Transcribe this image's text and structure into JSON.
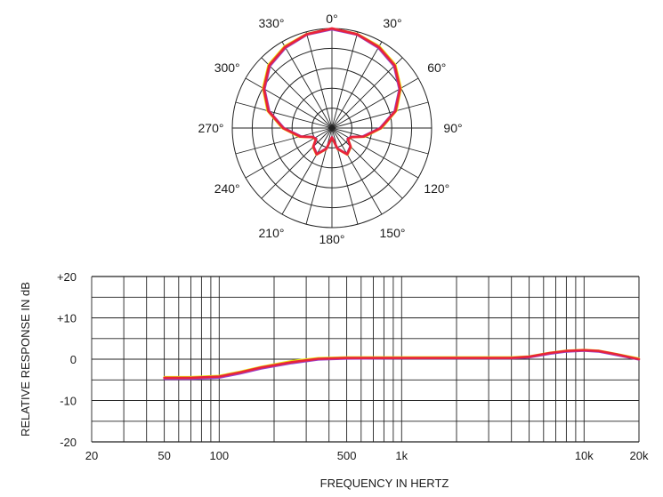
{
  "chart_data": [
    {
      "type": "polar",
      "angle_labels": [
        "0°",
        "30°",
        "60°",
        "90°",
        "120°",
        "150°",
        "180°",
        "210°",
        "240°",
        "270°",
        "300°",
        "330°"
      ],
      "rings": 5,
      "pattern": "supercardioid",
      "series": [
        {
          "color": "#e8e810",
          "values": [
            {
              "angle": 0,
              "r": 1.0
            },
            {
              "angle": 15,
              "r": 0.98
            },
            {
              "angle": 30,
              "r": 0.95
            },
            {
              "angle": 45,
              "r": 0.9
            },
            {
              "angle": 60,
              "r": 0.8
            },
            {
              "angle": 75,
              "r": 0.67
            },
            {
              "angle": 90,
              "r": 0.5
            },
            {
              "angle": 105,
              "r": 0.34
            },
            {
              "angle": 115,
              "r": 0.22
            },
            {
              "angle": 125,
              "r": 0.2
            },
            {
              "angle": 135,
              "r": 0.27
            },
            {
              "angle": 150,
              "r": 0.31
            },
            {
              "angle": 165,
              "r": 0.22
            },
            {
              "angle": 180,
              "r": 0.1
            },
            {
              "angle": 195,
              "r": 0.22
            },
            {
              "angle": 210,
              "r": 0.31
            },
            {
              "angle": 225,
              "r": 0.27
            },
            {
              "angle": 235,
              "r": 0.2
            },
            {
              "angle": 245,
              "r": 0.22
            },
            {
              "angle": 255,
              "r": 0.34
            },
            {
              "angle": 270,
              "r": 0.5
            },
            {
              "angle": 285,
              "r": 0.67
            },
            {
              "angle": 300,
              "r": 0.8
            },
            {
              "angle": 315,
              "r": 0.9
            },
            {
              "angle": 330,
              "r": 0.95
            },
            {
              "angle": 345,
              "r": 0.98
            }
          ]
        },
        {
          "color": "#9b3ec8",
          "values": [
            {
              "angle": 0,
              "r": 0.99
            },
            {
              "angle": 15,
              "r": 0.97
            },
            {
              "angle": 30,
              "r": 0.93
            },
            {
              "angle": 45,
              "r": 0.88
            },
            {
              "angle": 60,
              "r": 0.78
            },
            {
              "angle": 75,
              "r": 0.65
            },
            {
              "angle": 90,
              "r": 0.48
            },
            {
              "angle": 105,
              "r": 0.32
            },
            {
              "angle": 115,
              "r": 0.21
            },
            {
              "angle": 125,
              "r": 0.19
            },
            {
              "angle": 135,
              "r": 0.26
            },
            {
              "angle": 150,
              "r": 0.3
            },
            {
              "angle": 165,
              "r": 0.21
            },
            {
              "angle": 180,
              "r": 0.09
            },
            {
              "angle": 195,
              "r": 0.21
            },
            {
              "angle": 210,
              "r": 0.3
            },
            {
              "angle": 225,
              "r": 0.26
            },
            {
              "angle": 235,
              "r": 0.19
            },
            {
              "angle": 245,
              "r": 0.21
            },
            {
              "angle": 255,
              "r": 0.32
            },
            {
              "angle": 270,
              "r": 0.48
            },
            {
              "angle": 285,
              "r": 0.65
            },
            {
              "angle": 300,
              "r": 0.78
            },
            {
              "angle": 315,
              "r": 0.88
            },
            {
              "angle": 330,
              "r": 0.93
            },
            {
              "angle": 345,
              "r": 0.97
            }
          ]
        },
        {
          "color": "#e8243a",
          "values": [
            {
              "angle": 0,
              "r": 1.0
            },
            {
              "angle": 15,
              "r": 0.975
            },
            {
              "angle": 30,
              "r": 0.94
            },
            {
              "angle": 45,
              "r": 0.89
            },
            {
              "angle": 60,
              "r": 0.79
            },
            {
              "angle": 75,
              "r": 0.66
            },
            {
              "angle": 90,
              "r": 0.49
            },
            {
              "angle": 105,
              "r": 0.33
            },
            {
              "angle": 115,
              "r": 0.215
            },
            {
              "angle": 125,
              "r": 0.195
            },
            {
              "angle": 135,
              "r": 0.265
            },
            {
              "angle": 150,
              "r": 0.305
            },
            {
              "angle": 165,
              "r": 0.215
            },
            {
              "angle": 180,
              "r": 0.095
            },
            {
              "angle": 195,
              "r": 0.215
            },
            {
              "angle": 210,
              "r": 0.305
            },
            {
              "angle": 225,
              "r": 0.265
            },
            {
              "angle": 235,
              "r": 0.195
            },
            {
              "angle": 245,
              "r": 0.215
            },
            {
              "angle": 255,
              "r": 0.33
            },
            {
              "angle": 270,
              "r": 0.49
            },
            {
              "angle": 285,
              "r": 0.66
            },
            {
              "angle": 300,
              "r": 0.79
            },
            {
              "angle": 315,
              "r": 0.89
            },
            {
              "angle": 330,
              "r": 0.94
            },
            {
              "angle": 345,
              "r": 0.975
            }
          ]
        }
      ]
    },
    {
      "type": "line",
      "xscale": "log",
      "xlim": [
        20,
        20000
      ],
      "ylim": [
        -20,
        20
      ],
      "xlabel": "FREQUENCY IN HERTZ",
      "ylabel": "RELATIVE RESPONSE IN dB",
      "x_ticks": [
        {
          "value": 20,
          "label": "20"
        },
        {
          "value": 50,
          "label": "50"
        },
        {
          "value": 100,
          "label": "100"
        },
        {
          "value": 500,
          "label": "500"
        },
        {
          "value": 1000,
          "label": "1k"
        },
        {
          "value": 10000,
          "label": "10k"
        },
        {
          "value": 20000,
          "label": "20k"
        }
      ],
      "y_ticks": [
        {
          "value": 20,
          "label": "+20"
        },
        {
          "value": 10,
          "label": "+10"
        },
        {
          "value": 0,
          "label": "0"
        },
        {
          "value": -10,
          "label": "-10"
        },
        {
          "value": -20,
          "label": "-20"
        }
      ],
      "grid": true,
      "series": [
        {
          "color": "#e8e810",
          "x": [
            50,
            70,
            100,
            130,
            170,
            250,
            350,
            500,
            1000,
            2000,
            4000,
            5000,
            6500,
            8000,
            10000,
            12000,
            15000,
            20000
          ],
          "y": [
            -4.3,
            -4.3,
            -4.0,
            -3.0,
            -1.8,
            -0.4,
            0.3,
            0.5,
            0.5,
            0.5,
            0.5,
            0.7,
            1.6,
            2.1,
            2.3,
            2.1,
            1.3,
            0.2
          ]
        },
        {
          "color": "#9b3ec8",
          "x": [
            50,
            70,
            100,
            130,
            170,
            250,
            350,
            500,
            1000,
            2000,
            4000,
            5000,
            6500,
            8000,
            10000,
            12000,
            15000,
            20000
          ],
          "y": [
            -4.8,
            -4.8,
            -4.5,
            -3.5,
            -2.3,
            -1.0,
            -0.1,
            0.1,
            0.2,
            0.2,
            0.2,
            0.4,
            1.3,
            1.8,
            2.0,
            1.8,
            1.0,
            -0.1
          ]
        },
        {
          "color": "#e8243a",
          "x": [
            50,
            70,
            100,
            130,
            170,
            250,
            350,
            500,
            1000,
            2000,
            4000,
            5000,
            6500,
            8000,
            10000,
            12000,
            15000,
            20000
          ],
          "y": [
            -4.5,
            -4.5,
            -4.2,
            -3.2,
            -2.0,
            -0.7,
            0.1,
            0.3,
            0.3,
            0.3,
            0.3,
            0.6,
            1.5,
            2.0,
            2.2,
            2.0,
            1.2,
            0.0
          ]
        }
      ]
    }
  ]
}
